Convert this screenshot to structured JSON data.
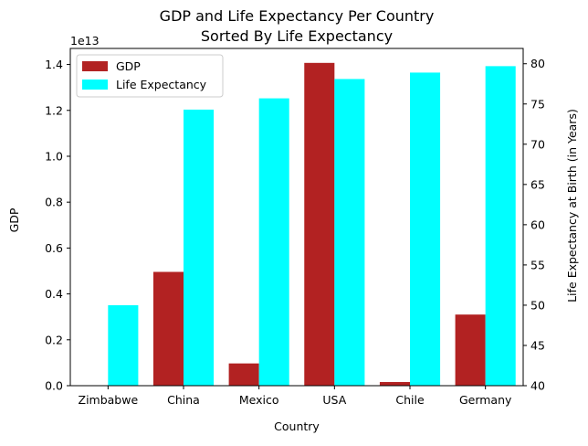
{
  "chart_data": {
    "type": "bar",
    "title_line1": "GDP and Life Expectancy Per Country",
    "title_line2": "Sorted By Life Expectancy",
    "xlabel": "Country",
    "ylabel_left": "GDP",
    "ylabel_right": "Life Expectancy at Birth (in Years)",
    "left_offset_text": "1e13",
    "categories": [
      "Zimbabwe",
      "China",
      "Mexico",
      "USA",
      "Chile",
      "Germany"
    ],
    "series": [
      {
        "name": "GDP",
        "axis": "left",
        "color": "#b22222",
        "values": [
          0.001,
          0.496,
          0.097,
          1.407,
          0.016,
          0.31
        ]
      },
      {
        "name": "Life Expectancy",
        "axis": "right",
        "color": "#00ffff",
        "values": [
          50.0,
          74.3,
          75.7,
          78.1,
          78.9,
          79.7
        ]
      }
    ],
    "ylim_left": [
      0,
      1.47
    ],
    "ylim_right": [
      40,
      81.9
    ],
    "yticks_left": [
      "0.0",
      "0.2",
      "0.4",
      "0.6",
      "0.8",
      "1.0",
      "1.2",
      "1.4"
    ],
    "yticks_right": [
      "40",
      "45",
      "50",
      "55",
      "60",
      "65",
      "70",
      "75",
      "80"
    ],
    "legend_location": "upper-left",
    "grid": false
  }
}
